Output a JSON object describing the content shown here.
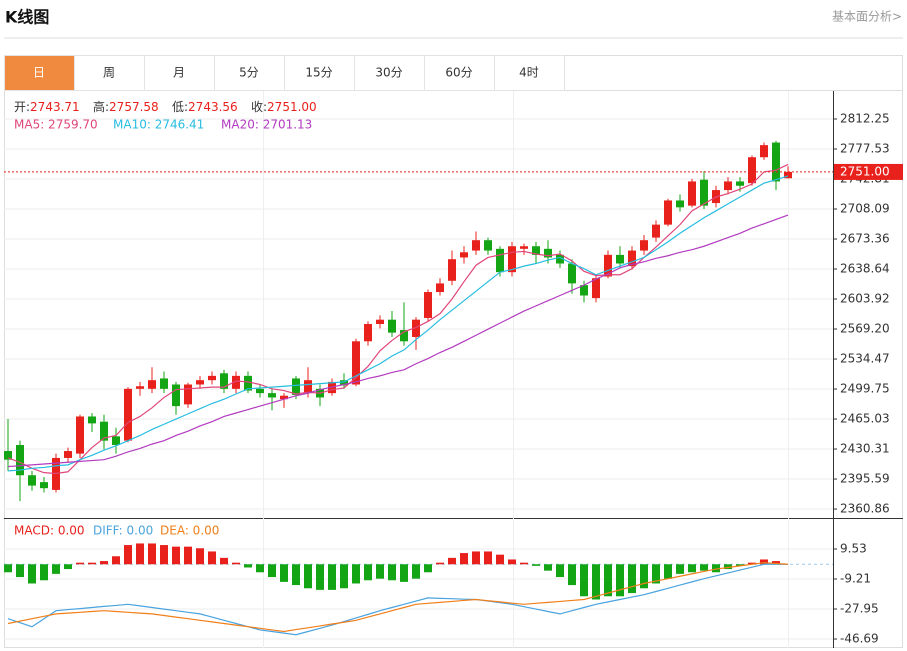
{
  "header": {
    "title": "K线图",
    "link": "基本面分析>"
  },
  "tabs": [
    "日",
    "周",
    "月",
    "5分",
    "15分",
    "30分",
    "60分",
    "4时"
  ],
  "active_tab": 0,
  "ohlc_info": [
    {
      "label": "开:",
      "value": "2743.71"
    },
    {
      "label": "高:",
      "value": "2757.58"
    },
    {
      "label": "低:",
      "value": "2743.56"
    },
    {
      "label": "收:",
      "value": "2751.00"
    }
  ],
  "chart_data": [
    {
      "type": "candlestick",
      "up_color": "#e8211c",
      "down_color": "#14a514",
      "open": [
        2428,
        2435,
        2400,
        2392,
        2383,
        2420,
        2425,
        2468,
        2462,
        2445,
        2440,
        2500,
        2500,
        2512,
        2505,
        2482,
        2505,
        2510,
        2518,
        2500,
        2515,
        2500,
        2495,
        2488,
        2512,
        2495,
        2500,
        2495,
        2510,
        2505,
        2555,
        2575,
        2580,
        2568,
        2560,
        2582,
        2612,
        2625,
        2652,
        2660,
        2672,
        2662,
        2635,
        2662,
        2665,
        2662,
        2655,
        2645,
        2620,
        2605,
        2630,
        2655,
        2642,
        2660,
        2675,
        2690,
        2718,
        2712,
        2742,
        2715,
        2730,
        2740,
        2738,
        2768,
        2785,
        2743.71
      ],
      "high": [
        2465,
        2440,
        2405,
        2398,
        2425,
        2432,
        2470,
        2472,
        2470,
        2455,
        2502,
        2508,
        2525,
        2520,
        2508,
        2507,
        2515,
        2520,
        2522,
        2520,
        2520,
        2505,
        2500,
        2495,
        2515,
        2525,
        2505,
        2512,
        2518,
        2558,
        2578,
        2585,
        2590,
        2600,
        2583,
        2615,
        2628,
        2660,
        2665,
        2682,
        2675,
        2665,
        2670,
        2668,
        2670,
        2672,
        2660,
        2650,
        2625,
        2632,
        2660,
        2665,
        2665,
        2678,
        2695,
        2720,
        2725,
        2743,
        2752,
        2735,
        2745,
        2745,
        2770,
        2785,
        2787,
        2757.58
      ],
      "low": [
        2405,
        2370,
        2382,
        2380,
        2380,
        2415,
        2420,
        2450,
        2430,
        2425,
        2438,
        2492,
        2495,
        2495,
        2470,
        2478,
        2500,
        2505,
        2495,
        2495,
        2495,
        2490,
        2475,
        2478,
        2488,
        2490,
        2480,
        2492,
        2500,
        2503,
        2550,
        2570,
        2560,
        2550,
        2545,
        2578,
        2608,
        2620,
        2645,
        2655,
        2655,
        2630,
        2630,
        2655,
        2645,
        2645,
        2640,
        2610,
        2600,
        2600,
        2628,
        2640,
        2638,
        2655,
        2670,
        2688,
        2705,
        2710,
        2708,
        2710,
        2725,
        2728,
        2735,
        2765,
        2730,
        2743.56
      ],
      "close": [
        2418,
        2400,
        2388,
        2385,
        2420,
        2428,
        2468,
        2460,
        2440,
        2435,
        2500,
        2503,
        2510,
        2500,
        2480,
        2505,
        2510,
        2515,
        2500,
        2515,
        2498,
        2495,
        2490,
        2492,
        2493,
        2510,
        2490,
        2508,
        2504,
        2555,
        2575,
        2580,
        2565,
        2555,
        2580,
        2612,
        2622,
        2650,
        2658,
        2672,
        2660,
        2635,
        2665,
        2665,
        2655,
        2652,
        2645,
        2622,
        2608,
        2628,
        2655,
        2645,
        2660,
        2672,
        2690,
        2718,
        2710,
        2740,
        2712,
        2730,
        2740,
        2735,
        2768,
        2782,
        2740,
        2751
      ],
      "series": [
        {
          "name": "MA5: 2759.70",
          "color": "#e0467a",
          "values": [
            2420,
            2415,
            2408,
            2403,
            2402,
            2404,
            2418,
            2432,
            2443,
            2446,
            2461,
            2468,
            2478,
            2490,
            2499,
            2500,
            2501,
            2502,
            2502,
            2509,
            2508,
            2505,
            2500,
            2498,
            2494,
            2496,
            2495,
            2499,
            2501,
            2513,
            2526,
            2544,
            2556,
            2566,
            2571,
            2578,
            2587,
            2604,
            2624,
            2643,
            2652,
            2655,
            2658,
            2659,
            2656,
            2654,
            2656,
            2648,
            2636,
            2631,
            2632,
            2632,
            2639,
            2652,
            2664,
            2677,
            2690,
            2706,
            2714,
            2722,
            2726,
            2731,
            2737,
            2751,
            2753,
            2759.7
          ]
        },
        {
          "name": "MA10: 2746.41",
          "color": "#27bde0",
          "values": [
            2405,
            2406,
            2408,
            2409,
            2411,
            2412,
            2418,
            2423,
            2429,
            2434,
            2440,
            2446,
            2453,
            2459,
            2465,
            2471,
            2477,
            2483,
            2488,
            2494,
            2500,
            2501,
            2502,
            2503,
            2504,
            2505,
            2506,
            2507,
            2508,
            2515,
            2522,
            2529,
            2538,
            2545,
            2557,
            2568,
            2580,
            2591,
            2602,
            2613,
            2624,
            2635,
            2638,
            2642,
            2645,
            2649,
            2652,
            2645,
            2639,
            2632,
            2637,
            2642,
            2647,
            2652,
            2661,
            2670,
            2680,
            2689,
            2698,
            2706,
            2714,
            2722,
            2730,
            2738,
            2742,
            2746.41
          ]
        },
        {
          "name": "MA20: 2701.13",
          "color": "#b23bbf",
          "values": [
            2410,
            2411,
            2412,
            2413,
            2414,
            2415,
            2416,
            2417,
            2418,
            2422,
            2427,
            2431,
            2436,
            2440,
            2446,
            2451,
            2457,
            2462,
            2468,
            2472,
            2476,
            2480,
            2484,
            2488,
            2492,
            2495,
            2499,
            2502,
            2505,
            2508,
            2512,
            2515,
            2519,
            2522,
            2529,
            2535,
            2542,
            2548,
            2555,
            2562,
            2569,
            2576,
            2583,
            2590,
            2596,
            2602,
            2608,
            2614,
            2620,
            2627,
            2633,
            2640,
            2644,
            2647,
            2651,
            2654,
            2658,
            2661,
            2665,
            2670,
            2675,
            2680,
            2686,
            2691,
            2696,
            2701.13
          ]
        }
      ],
      "last_price": {
        "value": 2751,
        "label": "2751.00"
      },
      "ylim": [
        2350.5,
        2843.5
      ],
      "yticks": [
        2812.25,
        2777.53,
        2742.81,
        2708.09,
        2673.36,
        2638.64,
        2603.92,
        {
          "value": 2569.2,
          "label": "2569.20"
        },
        2534.47,
        2499.75,
        2465.03,
        2430.31,
        2395.59,
        2360.86
      ],
      "grid": true
    },
    {
      "type": "macd",
      "up_color": "#e8211c",
      "down_color": "#14a514",
      "values": [
        -5,
        -8,
        -12,
        -10,
        -6,
        -3,
        1,
        1,
        2,
        5,
        12,
        13,
        13,
        12,
        11,
        11,
        10,
        8,
        4,
        1,
        -2,
        -5,
        -8,
        -11,
        -13,
        -15,
        -16,
        -16,
        -15,
        -12,
        -10,
        -9,
        -10,
        -11,
        -9,
        -5,
        1,
        4,
        7,
        8,
        8,
        6,
        3,
        1,
        -1,
        -4,
        -8,
        -13,
        -20,
        -22,
        -20,
        -20,
        -18,
        -15,
        -12,
        -9,
        -6,
        -5,
        -4,
        -5,
        -3,
        -1,
        1,
        3,
        2,
        0
      ],
      "name": "MACD: 0.00",
      "series": [
        {
          "name": "DIFF: 0.00",
          "color": "#4aa3df",
          "values": [
            -34,
            -36.5,
            -39,
            -34,
            -29,
            -28.3,
            -27.7,
            -27,
            -26.3,
            -25.7,
            -25,
            -26,
            -27,
            -28,
            -29,
            -30,
            -31,
            -33,
            -35,
            -37,
            -39,
            -41,
            -42,
            -43,
            -44,
            -42,
            -40,
            -38,
            -35.8,
            -33.5,
            -31.3,
            -29,
            -27,
            -25,
            -23,
            -21,
            -21.3,
            -21.5,
            -21.8,
            -22,
            -23,
            -24,
            -25,
            -26.5,
            -28,
            -29.5,
            -31,
            -29,
            -27,
            -25,
            -23.5,
            -22,
            -20.5,
            -19,
            -17,
            -15,
            -13,
            -11,
            -9,
            -7.2,
            -5.4,
            -3.6,
            -1.8,
            0,
            0,
            0
          ]
        },
        {
          "name": "DEA: 0.00",
          "color": "#f07f1a",
          "values": [
            -37,
            -35.5,
            -34,
            -32.5,
            -31,
            -30.5,
            -30,
            -29.5,
            -29,
            -29.5,
            -30,
            -30.5,
            -31,
            -32,
            -33,
            -34,
            -35,
            -36,
            -37,
            -38,
            -39,
            -40,
            -41,
            -42,
            -40.8,
            -39.7,
            -38.5,
            -37.3,
            -36.2,
            -35,
            -33,
            -31,
            -29,
            -27,
            -25,
            -24.4,
            -23.8,
            -23.2,
            -22.6,
            -22,
            -22.8,
            -23.5,
            -24.3,
            -25,
            -24.4,
            -23.8,
            -23.2,
            -22.6,
            -22,
            -20,
            -18,
            -16,
            -14,
            -12,
            -10.5,
            -9,
            -7.5,
            -6,
            -4.5,
            -3,
            -2,
            -1,
            0,
            1,
            0.5,
            0
          ]
        }
      ],
      "ylim": [
        -52.3,
        27.65
      ],
      "yticks": [
        9.53,
        -9.21,
        -27.95,
        -46.69
      ],
      "grid": true
    }
  ]
}
